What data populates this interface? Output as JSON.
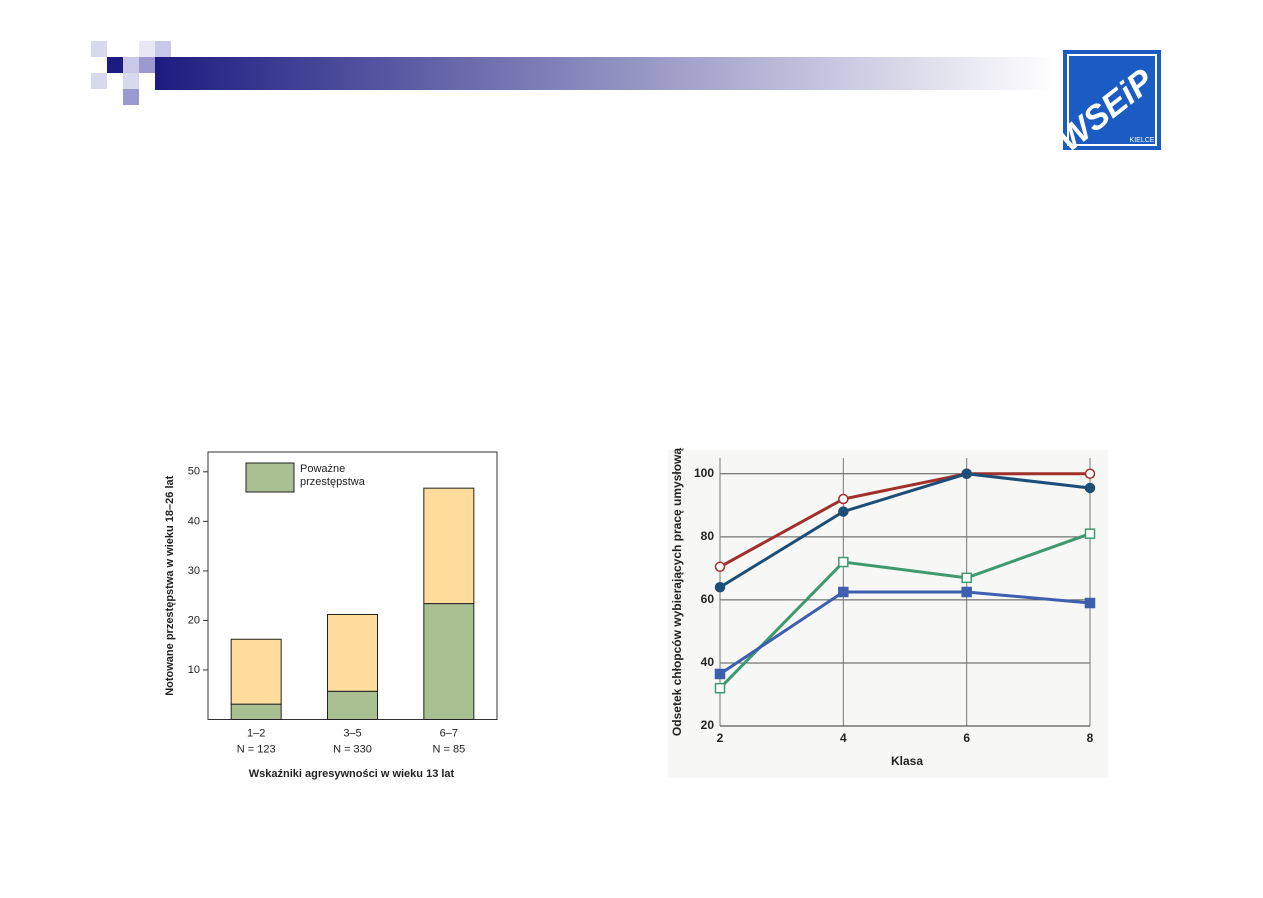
{
  "logo": {
    "text": "WSEiP",
    "city": "KIELCE"
  },
  "chart_data": [
    {
      "type": "bar",
      "stacked": true,
      "y_label": "Notowane przestępstwa w wieku 18–26 lat",
      "x_label": "Wskaźniki agresywności w wieku 13 lat",
      "categories": [
        "1–2",
        "3–5",
        "6–7"
      ],
      "n_labels": [
        "N = 123",
        "N = 330",
        "N = 85"
      ],
      "series": [
        {
          "name": "Poważne przestępstwa",
          "color": "#a8c092",
          "values": [
            3.1,
            5.7,
            23.4
          ]
        },
        {
          "color": "#fddc9c",
          "values": [
            13.1,
            15.5,
            23.3
          ]
        }
      ],
      "ylim": [
        0,
        54
      ],
      "yticks": [
        10,
        20,
        30,
        40,
        50
      ],
      "legend": "top-left"
    },
    {
      "type": "line",
      "y_label": "Odsetek chłopców wybierających pracę umysłową",
      "x_label": "Klasa",
      "x": [
        2,
        4,
        6,
        8
      ],
      "series": [
        {
          "color": "#a0302a",
          "marker": "open-circle",
          "values": [
            70.5,
            92,
            100,
            100
          ]
        },
        {
          "color": "#1d4e78",
          "marker": "filled-circle",
          "values": [
            64,
            88,
            100,
            95.5
          ]
        },
        {
          "color": "#3e9a6e",
          "marker": "open-square",
          "values": [
            32,
            72,
            67,
            81
          ]
        },
        {
          "color": "#3d5fae",
          "marker": "filled-square",
          "values": [
            36.5,
            62.5,
            62.5,
            59
          ]
        }
      ],
      "xlim": [
        2,
        8
      ],
      "xticks": [
        2,
        4,
        6,
        8
      ],
      "ylim": [
        20,
        105
      ],
      "yticks": [
        20,
        40,
        60,
        80,
        100
      ],
      "grid": true
    }
  ]
}
